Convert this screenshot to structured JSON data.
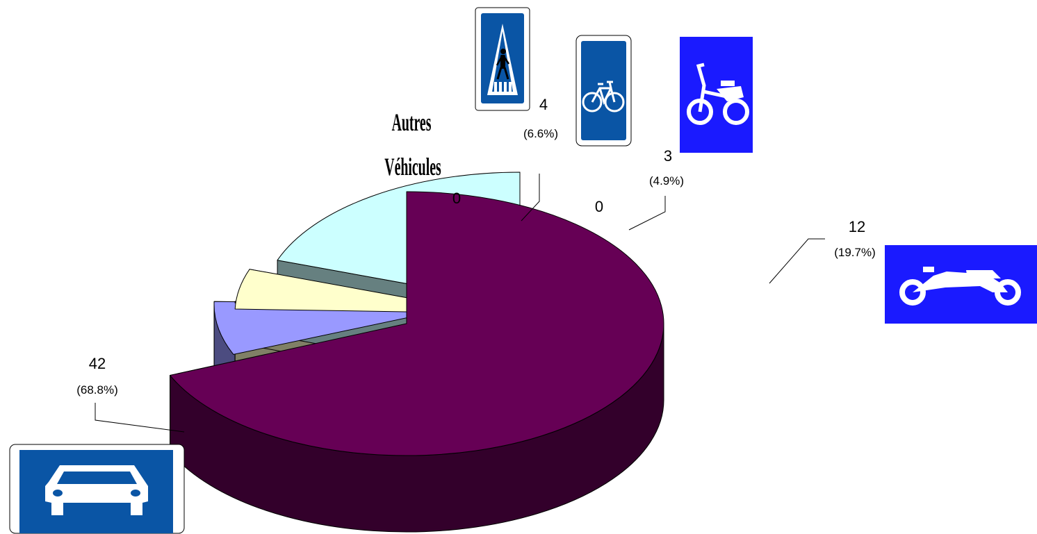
{
  "chart_data": {
    "type": "pie",
    "slices": [
      {
        "icon": "car-sign-icon",
        "value": 42,
        "percent": "(68.8%)",
        "top_color": "#660055",
        "side_color": "#33002b"
      },
      {
        "label": "Autres Véhicules",
        "label_lines": [
          "Autres",
          "Véhicules"
        ],
        "value": 0,
        "percent": "",
        "top_color": "#ffffff",
        "side_color": "#ffffff"
      },
      {
        "icon": "pedestrian-sign-icon",
        "value": 4,
        "percent": "(6.6%)",
        "top_color": "#9999ff",
        "side_color": "#4c4c80"
      },
      {
        "icon": "bicycle-sign-icon",
        "value": 0,
        "percent": "",
        "top_color": "#993366",
        "side_color": "#4a1830"
      },
      {
        "icon": "moped-sign-icon",
        "value": 3,
        "percent": "(4.9%)",
        "top_color": "#ffffcc",
        "side_color": "#808066"
      },
      {
        "icon": "motorcycle-sign-icon",
        "value": 12,
        "percent": "(19.7%)",
        "top_color": "#ccffff",
        "side_color": "#668080"
      }
    ]
  },
  "colors": {
    "sign_blue": "#0a55a5",
    "sign_blue_bright": "#1a1aff"
  }
}
